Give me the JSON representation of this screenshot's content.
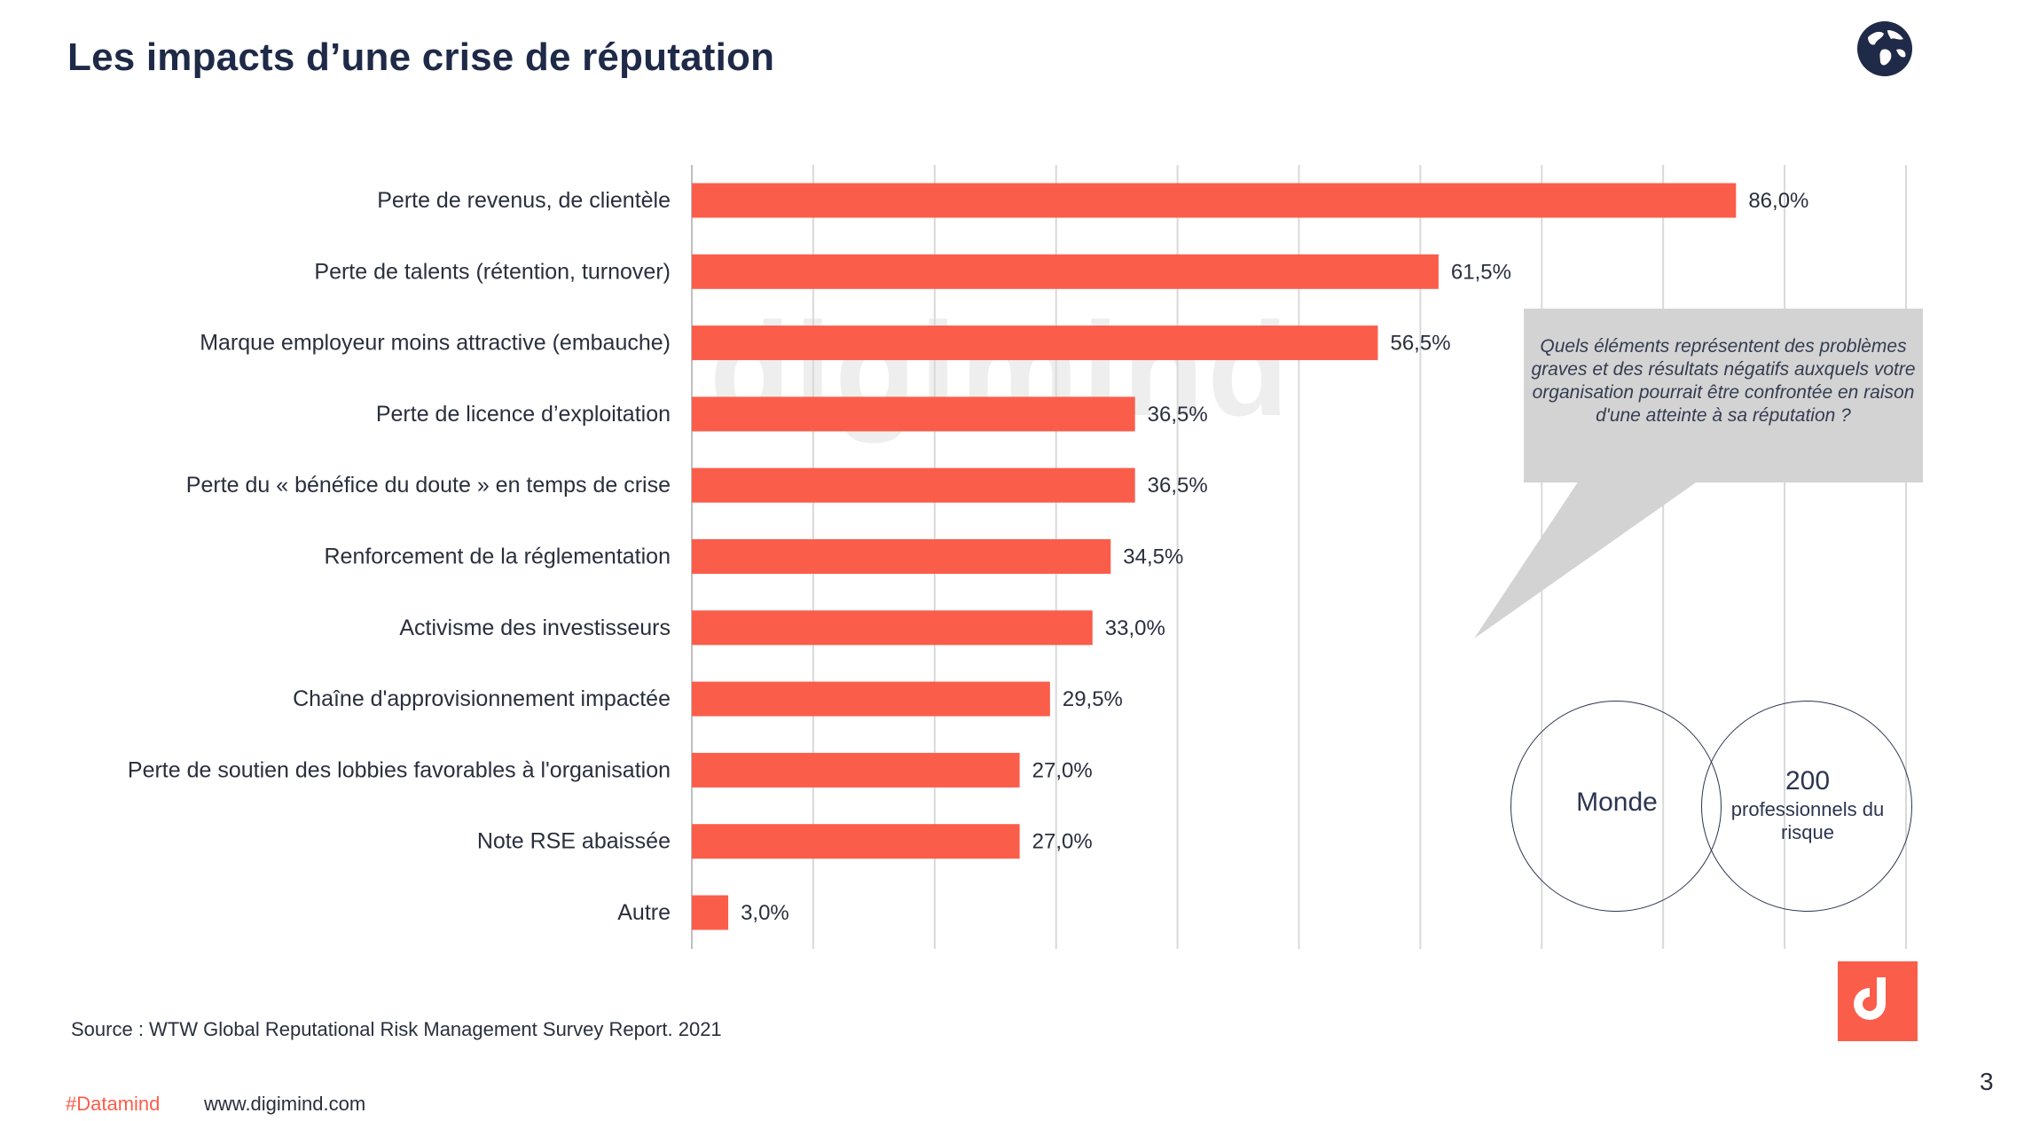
{
  "header": {
    "title": "Les impacts d’une crise de réputation",
    "globe_icon": "globe-icon"
  },
  "chart_data": {
    "type": "bar",
    "orientation": "horizontal",
    "categories": [
      "Perte de revenus, de clientèle",
      "Perte de talents (rétention, turnover)",
      "Marque employeur  moins attractive (embauche)",
      "Perte de licence d’exploitation",
      "Perte du « bénéfice du doute » en temps de crise",
      "Renforcement de la réglementation",
      "Activisme des investisseurs",
      "Chaîne d'approvisionnement impactée",
      "Perte de soutien des lobbies favorables à l'organisation",
      "Note RSE abaissée",
      "Autre"
    ],
    "values": [
      86.0,
      61.5,
      56.5,
      36.5,
      36.5,
      34.5,
      33.0,
      29.5,
      27.0,
      27.0,
      3.0
    ],
    "data_labels": [
      "86,0%",
      "61,5%",
      "56,5%",
      "36,5%",
      "36,5%",
      "34,5%",
      "33,0%",
      "29,5%",
      "27,0%",
      "27,0%",
      "3,0%"
    ],
    "xlim": [
      0,
      100
    ],
    "grid": true,
    "bar_color": "#fb5d4b",
    "title": "",
    "xlabel": "",
    "ylabel": ""
  },
  "watermark": {
    "text": "digimind"
  },
  "question": {
    "text": "Quels éléments représentent des problèmes graves et des résultats négatifs auxquels votre organisation pourrait être confrontée en raison d'une atteinte à sa réputation ?"
  },
  "scope": {
    "region": "Monde",
    "respondents_count": "200",
    "respondents_label": "professionnels du risque"
  },
  "footer": {
    "source": "Source : WTW Global Reputational Risk Management Survey Report. 2021",
    "hashtag": "#Datamind",
    "website": "www.digimind.com",
    "page_number": "3"
  },
  "brand": {
    "logo_icon": "digimind-logo-icon",
    "accent": "#fb5d4b"
  }
}
